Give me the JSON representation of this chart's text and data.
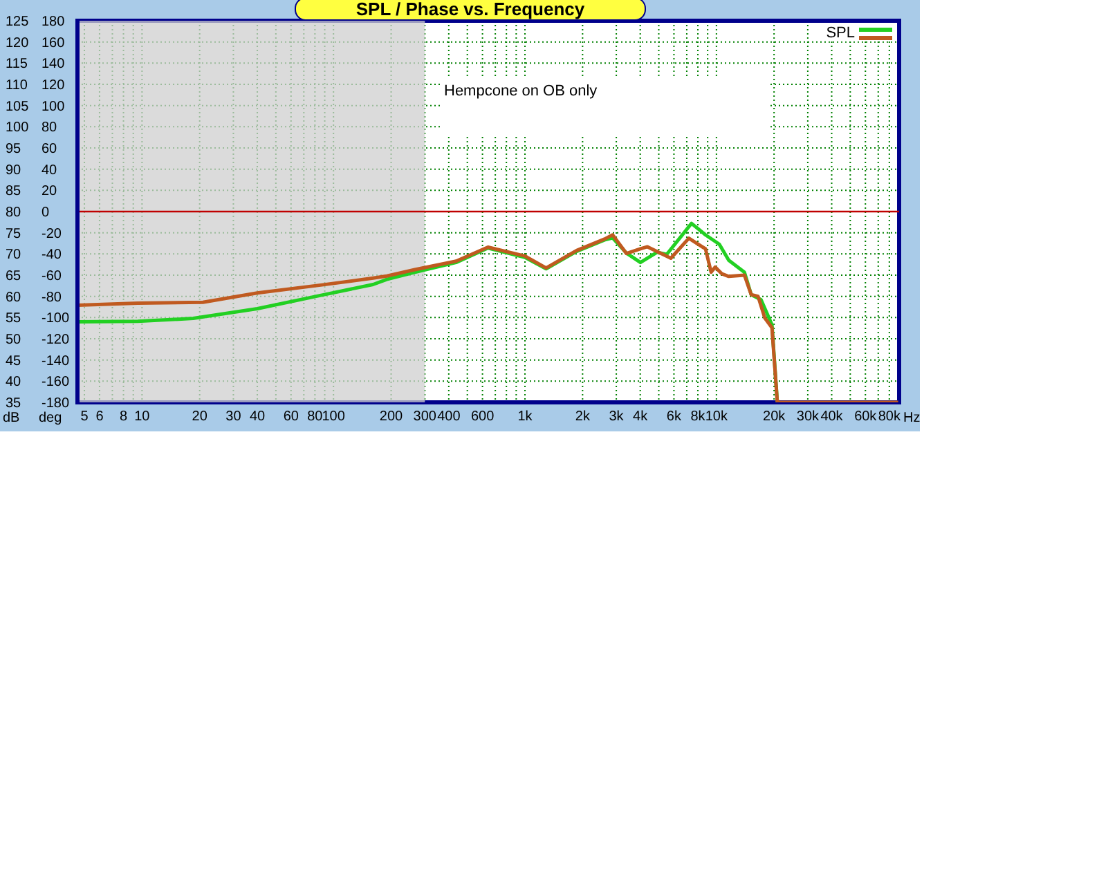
{
  "chart_data": {
    "type": "line",
    "title": "SPL / Phase vs. Frequency",
    "xlabel": "Hz",
    "ylabel": "dB",
    "y2label": "deg",
    "annotations": [
      "Hempcone on OB only"
    ],
    "log": "x",
    "grid": true,
    "legend": "top right",
    "xlim": [
      4.6,
      90000
    ],
    "xticks": [
      5,
      6,
      {
        "value": 7,
        "label": null
      },
      8,
      {
        "value": 9,
        "label": null
      },
      10,
      20,
      30,
      40,
      {
        "value": 50,
        "label": null
      },
      60,
      {
        "value": 70,
        "label": null
      },
      80,
      {
        "value": 90,
        "label": null
      },
      100,
      200,
      300,
      400,
      {
        "value": 500,
        "label": null
      },
      600,
      {
        "value": 700,
        "label": null
      },
      {
        "value": 800,
        "label": null
      },
      {
        "value": 900,
        "label": null
      },
      {
        "value": 1000,
        "label": "1k"
      },
      {
        "value": 2000,
        "label": "2k"
      },
      {
        "value": 3000,
        "label": "3k"
      },
      {
        "value": 4000,
        "label": "4k"
      },
      {
        "value": 5000,
        "label": null
      },
      {
        "value": 6000,
        "label": "6k"
      },
      {
        "value": 7000,
        "label": null
      },
      {
        "value": 8000,
        "label": "8k"
      },
      {
        "value": 9000,
        "label": null
      },
      {
        "value": 10000,
        "label": "10k"
      },
      {
        "value": 20000,
        "label": "20k"
      },
      {
        "value": 30000,
        "label": "30k"
      },
      {
        "value": 40000,
        "label": "40k"
      },
      {
        "value": 50000,
        "label": null
      },
      {
        "value": 60000,
        "label": "60k"
      },
      {
        "value": 70000,
        "label": null
      },
      {
        "value": 80000,
        "label": "80k"
      }
    ],
    "ylim": [
      35,
      125
    ],
    "yticks": [
      35,
      40,
      45,
      50,
      55,
      60,
      65,
      70,
      75,
      80,
      85,
      90,
      95,
      100,
      105,
      110,
      115,
      120,
      125
    ],
    "y2lim": [
      -180,
      180
    ],
    "y2ticks": [
      -180,
      -160,
      -140,
      -120,
      -100,
      -80,
      -60,
      -40,
      -20,
      0,
      20,
      40,
      60,
      80,
      100,
      120,
      140,
      160,
      180
    ],
    "ref_lines": [
      {
        "axis": "y2",
        "value": 0,
        "color": "#c00000"
      }
    ],
    "bands": [
      {
        "axis": "x",
        "from": 4.6,
        "to": 300,
        "color": "#cfcfcf"
      }
    ],
    "series": [
      {
        "name": "SPL",
        "color": "#22d022",
        "x": [
          4.6,
          9.5,
          18.5,
          40,
          87,
          161,
          190,
          266,
          437,
          641,
          1000,
          1290,
          1860,
          2600,
          2870,
          3390,
          4010,
          4900,
          5500,
          7410,
          8770,
          10350,
          11600,
          14000,
          15200,
          17100,
          19500,
          20800
        ],
        "values": [
          54.0,
          54.1,
          54.8,
          57.1,
          60.3,
          62.8,
          64.0,
          65.7,
          68.0,
          71.4,
          69.2,
          66.5,
          70.6,
          73.3,
          73.8,
          70.2,
          68.0,
          70.4,
          69.9,
          77.2,
          74.5,
          72.3,
          68.5,
          65.7,
          60.4,
          59.2,
          53.3,
          35
        ]
      },
      {
        "color": "#c05a20",
        "x": [
          4.6,
          9.5,
          20.8,
          40,
          87,
          161,
          190,
          266,
          437,
          641,
          1000,
          1290,
          1860,
          2600,
          2870,
          3390,
          4010,
          4360,
          5780,
          7180,
          8770,
          9380,
          9850,
          10700,
          11600,
          14000,
          15200,
          16500,
          17900,
          19500,
          20800,
          89000
        ],
        "values": [
          57.9,
          58.4,
          58.6,
          60.8,
          62.7,
          64.3,
          64.8,
          66.3,
          68.3,
          71.6,
          69.5,
          66.7,
          70.8,
          73.5,
          74.5,
          70.1,
          71.2,
          71.7,
          69.0,
          73.7,
          71.2,
          65.7,
          66.9,
          65.3,
          64.7,
          65.0,
          60.4,
          60.0,
          54.9,
          52.6,
          35,
          35
        ]
      }
    ]
  }
}
